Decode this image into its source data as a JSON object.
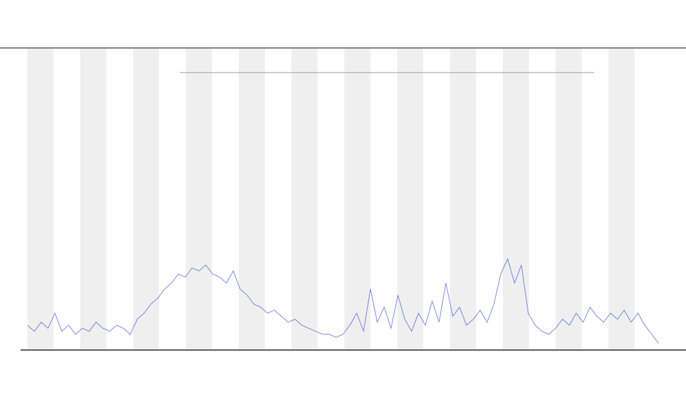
{
  "chart_data": {
    "type": "line",
    "ylim": [
      0,
      100
    ],
    "series": [
      {
        "color": "#4a52d6",
        "values": [
          8,
          6,
          9,
          7,
          12,
          6,
          8,
          5,
          7,
          6,
          9,
          7,
          6,
          8,
          7,
          5,
          10,
          12,
          15,
          17,
          20,
          22,
          25,
          24,
          27,
          26,
          28,
          25,
          24,
          22,
          26,
          20,
          18,
          15,
          14,
          12,
          13,
          11,
          9,
          10,
          8,
          7,
          6,
          5,
          5,
          4,
          5,
          8,
          12,
          6,
          20,
          9,
          14,
          7,
          18,
          10,
          6,
          12,
          8,
          16,
          9,
          22,
          11,
          14,
          8,
          10,
          13,
          9,
          15,
          25,
          30,
          22,
          28,
          12,
          8,
          6,
          5,
          7,
          10,
          8,
          12,
          9,
          14,
          11,
          9,
          12,
          10,
          13,
          9,
          12,
          8,
          5,
          2
        ]
      }
    ]
  }
}
